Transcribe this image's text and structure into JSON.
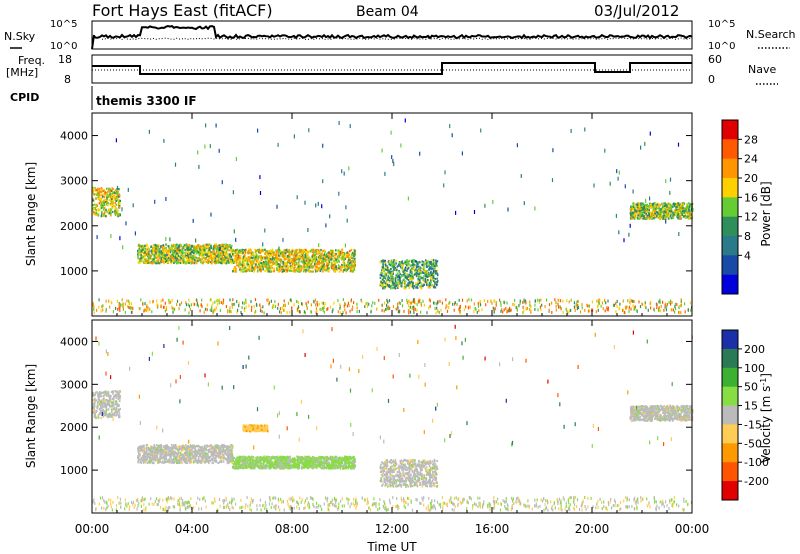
{
  "header": {
    "title": "Fort Hays East (fitACF)",
    "beam": "Beam 04",
    "date": "03/Jul/2012"
  },
  "status_panels": {
    "nsky_label": "N.Sky",
    "nsearch_label": "N.Search",
    "noise_ticks_left": [
      "10^5",
      "10^0"
    ],
    "noise_ticks_right": [
      "10^5",
      "10^0"
    ],
    "freq_label_1": "Freq.",
    "freq_label_2": "[MHz]",
    "freq_ticks": [
      "18",
      "8"
    ],
    "nave_label": "Nave",
    "nave_ticks": [
      "60",
      "0"
    ],
    "cpid_label": "CPID",
    "cpid_text": "themis 3300 IF"
  },
  "axes": {
    "ylabel": "Slant Range [km]",
    "xlabel": "Time UT",
    "yticks": [
      "1000",
      "2000",
      "3000",
      "4000"
    ],
    "xticks": [
      "00:00",
      "04:00",
      "08:00",
      "12:00",
      "16:00",
      "20:00",
      "00:00"
    ]
  },
  "power_colorbar": {
    "label": "Power [dB]",
    "ticks": [
      "28",
      "24",
      "20",
      "16",
      "12",
      "8",
      "4"
    ],
    "colors": [
      "#e00000",
      "#ff5a00",
      "#ff9600",
      "#ffd000",
      "#66cc33",
      "#2f8f5a",
      "#2a7a8a",
      "#1a4aa8",
      "#0000dd"
    ]
  },
  "velocity_colorbar": {
    "label": "Velocity [m s^-1]",
    "ticks": [
      "200",
      "100",
      "50",
      "15",
      "-15",
      "-50",
      "-100",
      "-200"
    ],
    "colors": [
      "#1a2fa8",
      "#2a7a55",
      "#3cb030",
      "#88dd44",
      "#bbbbbb",
      "#ffcc55",
      "#ff9900",
      "#ff5500",
      "#e00000"
    ]
  },
  "chart_data": [
    {
      "type": "heatmap",
      "title": "Power",
      "xlabel": "Time UT",
      "ylabel": "Slant Range [km]",
      "x_range_hours": [
        0,
        24
      ],
      "ylim": [
        0,
        4500
      ],
      "colorbar_range_db": [
        0,
        30
      ],
      "echo_regions": [
        {
          "t0": 0.0,
          "t1": 1.1,
          "r0": 2100,
          "r1": 3000,
          "value": 18
        },
        {
          "t0": 1.8,
          "t1": 5.6,
          "r0": 1100,
          "r1": 1700,
          "value": 16
        },
        {
          "t0": 5.6,
          "t1": 10.5,
          "r0": 900,
          "r1": 1600,
          "value": 18
        },
        {
          "t0": 11.5,
          "t1": 13.8,
          "r0": 500,
          "r1": 1400,
          "value": 12
        },
        {
          "t0": 21.5,
          "t1": 24.0,
          "r0": 2100,
          "r1": 2600,
          "value": 16
        }
      ]
    },
    {
      "type": "heatmap",
      "title": "Velocity",
      "xlabel": "Time UT",
      "ylabel": "Slant Range [km]",
      "x_range_hours": [
        0,
        24
      ],
      "ylim": [
        0,
        4500
      ],
      "colorbar_range_ms": [
        -200,
        200
      ],
      "echo_regions": [
        {
          "t0": 0.0,
          "t1": 1.1,
          "r0": 2100,
          "r1": 3000,
          "value": 0
        },
        {
          "t0": 1.8,
          "t1": 5.6,
          "r0": 1100,
          "r1": 1700,
          "value": 0
        },
        {
          "t0": 5.6,
          "t1": 10.5,
          "r0": 1000,
          "r1": 1400,
          "value": 40
        },
        {
          "t0": 6.0,
          "t1": 7.0,
          "r0": 1900,
          "r1": 2100,
          "value": -60
        },
        {
          "t0": 11.5,
          "t1": 13.8,
          "r0": 500,
          "r1": 1400,
          "value": 0
        },
        {
          "t0": 21.5,
          "t1": 24.0,
          "r0": 2100,
          "r1": 2600,
          "value": 0
        }
      ]
    }
  ]
}
